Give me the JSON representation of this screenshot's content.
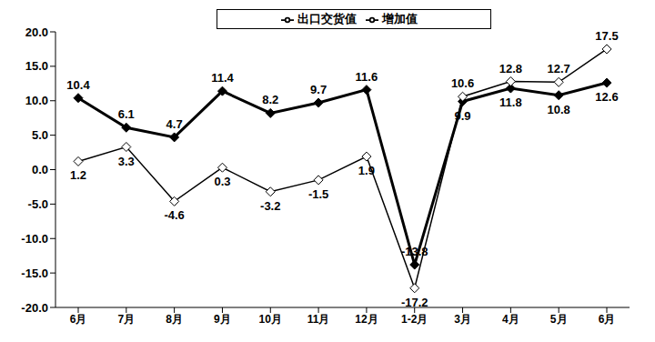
{
  "chart_data": {
    "type": "line",
    "categories": [
      "6月",
      "7月",
      "8月",
      "9月",
      "10月",
      "11月",
      "12月",
      "1-2月",
      "3月",
      "4月",
      "5月",
      "6月"
    ],
    "series": [
      {
        "name": "增加值",
        "color": "#000000",
        "marker": "diamond",
        "values": [
          10.4,
          6.1,
          4.7,
          11.4,
          8.2,
          9.7,
          11.6,
          -13.8,
          9.9,
          11.8,
          10.8,
          12.6
        ]
      },
      {
        "name": "出口交货值",
        "color": "#000000",
        "marker": "open_diamond",
        "values": [
          1.2,
          3.3,
          -4.6,
          0.3,
          -3.2,
          -1.5,
          1.9,
          -17.2,
          10.6,
          12.8,
          12.7,
          17.5
        ]
      }
    ],
    "ylim": [
      -20,
      20
    ],
    "yticks": [
      {
        "value": -20,
        "label": "-20.0"
      },
      {
        "value": -15,
        "label": "-15.0"
      },
      {
        "value": -10,
        "label": "-10.0"
      },
      {
        "value": -5,
        "label": "-5.0"
      },
      {
        "value": 0,
        "label": "0.0"
      },
      {
        "value": 5,
        "label": "5.0"
      },
      {
        "value": 10,
        "label": "10.0"
      },
      {
        "value": 15,
        "label": "15.0"
      },
      {
        "value": 20,
        "label": "20.0"
      }
    ],
    "data_labels": true,
    "legend": "top",
    "grid": false
  }
}
